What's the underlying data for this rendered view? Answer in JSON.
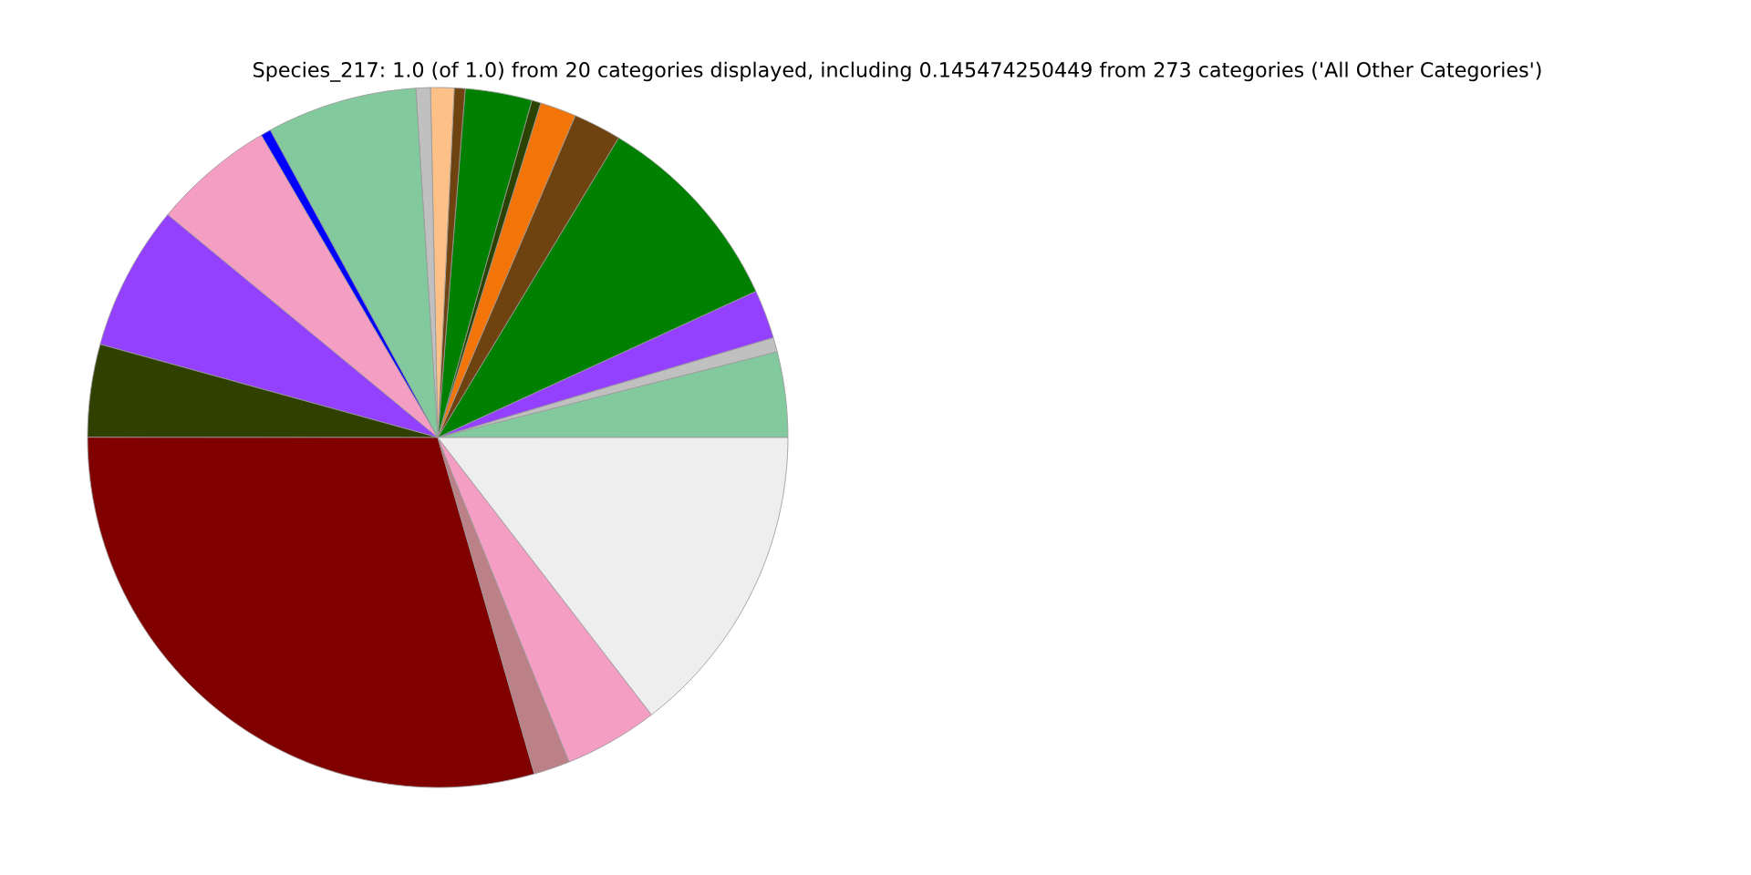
{
  "chart_data": {
    "type": "pie",
    "title": "Species_217: 1.0 (of 1.0) from 20 categories displayed, including 0.145474250449 from 273 categories ('All Other Categories')",
    "categories": [
      null,
      null,
      null,
      null,
      null,
      null,
      null,
      null,
      null,
      null,
      null,
      null,
      null,
      null,
      null,
      null,
      null,
      null,
      null,
      null
    ],
    "values": [
      3.94,
      0.67,
      2.25,
      9.5,
      2.22,
      1.67,
      0.42,
      3.08,
      0.5,
      1.08,
      0.67,
      6.94,
      0.47,
      5.61,
      6.69,
      4.28,
      29.46,
      1.67,
      4.33,
      14.55
    ],
    "colors": [
      "#82ca9d",
      "#c0c0c0",
      "#9440ff",
      "#008000",
      "#6f4310",
      "#f37407",
      "#2b4200",
      "#008000",
      "#6f4310",
      "#fdc086",
      "#c0c0c0",
      "#82ca9d",
      "#0000ff",
      "#f49ec4",
      "#9440ff",
      "#2f4000",
      "#800000",
      "#bc8087",
      "#f49ec4",
      "#eeeeee"
    ]
  }
}
